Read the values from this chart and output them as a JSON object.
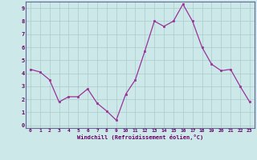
{
  "x": [
    0,
    1,
    2,
    3,
    4,
    5,
    6,
    7,
    8,
    9,
    10,
    11,
    12,
    13,
    14,
    15,
    16,
    17,
    18,
    19,
    20,
    21,
    22,
    23
  ],
  "y": [
    4.3,
    4.1,
    3.5,
    1.8,
    2.2,
    2.2,
    2.8,
    1.7,
    1.1,
    0.4,
    2.4,
    3.5,
    5.7,
    8.0,
    7.6,
    8.0,
    9.3,
    8.0,
    6.0,
    4.7,
    4.2,
    4.3,
    3.0,
    1.8
  ],
  "line_color": "#993399",
  "marker_color": "#993399",
  "bg_color": "#cce8e8",
  "grid_color": "#aacccc",
  "xlabel": "Windchill (Refroidissement éolien,°C)",
  "ylim": [
    -0.2,
    9.5
  ],
  "xlim": [
    -0.5,
    23.5
  ],
  "yticks": [
    0,
    1,
    2,
    3,
    4,
    5,
    6,
    7,
    8,
    9
  ],
  "xticks": [
    0,
    1,
    2,
    3,
    4,
    5,
    6,
    7,
    8,
    9,
    10,
    11,
    12,
    13,
    14,
    15,
    16,
    17,
    18,
    19,
    20,
    21,
    22,
    23
  ],
  "xtick_labels": [
    "0",
    "1",
    "2",
    "3",
    "4",
    "5",
    "6",
    "7",
    "8",
    "9",
    "10",
    "11",
    "12",
    "13",
    "14",
    "15",
    "16",
    "17",
    "18",
    "19",
    "20",
    "21",
    "22",
    "23"
  ],
  "font_color": "#660066",
  "spine_color": "#666699"
}
